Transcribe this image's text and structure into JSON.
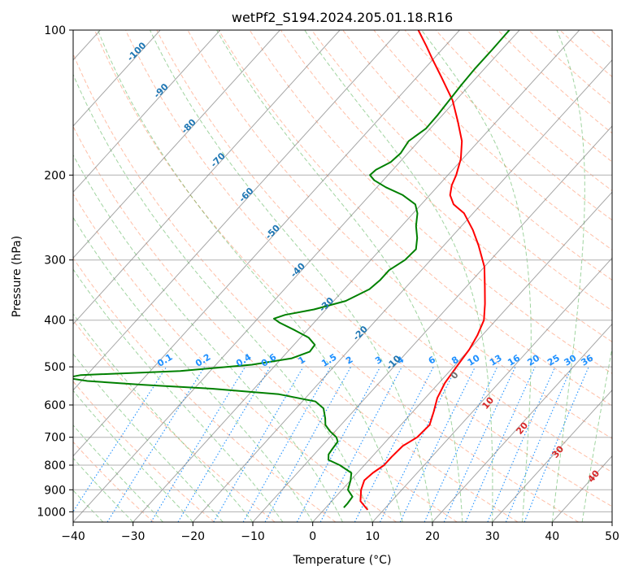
{
  "chart_data": {
    "type": "line",
    "subtype": "skew-T log-P diagram",
    "title": "wetPf2_S194.2024.205.01.18.R16",
    "xlabel": "Temperature (°C)",
    "ylabel": "Pressure (hPa)",
    "xlim": [
      -40,
      50
    ],
    "ylim": [
      1050,
      100
    ],
    "y_scale": "log",
    "x_ticks": [
      -40,
      -30,
      -20,
      -10,
      0,
      10,
      20,
      30,
      40,
      50
    ],
    "y_ticks": [
      1000,
      900,
      800,
      700,
      600,
      500,
      400,
      300,
      200,
      100
    ],
    "grid": true,
    "isotherm_labels": [
      -100,
      -90,
      -80,
      -70,
      -60,
      -50,
      -40,
      -30,
      -20,
      -10
    ],
    "mixing_ratio_labels": [
      "0.1",
      "0.2",
      "0.4",
      "0.6",
      "1",
      "1.5",
      "2",
      "3",
      "4",
      "6",
      "8",
      "10",
      "13",
      "16",
      "20",
      "25",
      "30",
      "36"
    ],
    "moist_adiabat_labels": [
      "0",
      "10",
      "20",
      "30",
      "40"
    ],
    "colors": {
      "temperature": "#ff0000",
      "dewpoint": "#008000",
      "dry_adiabat": "#ff7f50",
      "moist_adiabat": "#2ca02c",
      "mixing_ratio": "#1e90ff",
      "isotherm": "#808080",
      "isotherm_label": "#1f77b4",
      "moist_label": "#d62728",
      "frame": "#000000"
    },
    "series": [
      {
        "name": "Temperature",
        "points": [
          {
            "p": 990,
            "t": 7.3
          },
          {
            "p": 950,
            "t": 4.8
          },
          {
            "p": 900,
            "t": 3.2
          },
          {
            "p": 860,
            "t": 2.3
          },
          {
            "p": 830,
            "t": 2.6
          },
          {
            "p": 800,
            "t": 3.3
          },
          {
            "p": 770,
            "t": 3.3
          },
          {
            "p": 730,
            "t": 3.5
          },
          {
            "p": 700,
            "t": 4.6
          },
          {
            "p": 660,
            "t": 4.8
          },
          {
            "p": 620,
            "t": 3.5
          },
          {
            "p": 580,
            "t": 2.0
          },
          {
            "p": 540,
            "t": 1.0
          },
          {
            "p": 500,
            "t": 0.5
          },
          {
            "p": 460,
            "t": 0.0
          },
          {
            "p": 430,
            "t": -0.8
          },
          {
            "p": 400,
            "t": -2.0
          },
          {
            "p": 370,
            "t": -4.3
          },
          {
            "p": 340,
            "t": -7.0
          },
          {
            "p": 310,
            "t": -10.0
          },
          {
            "p": 280,
            "t": -14.2
          },
          {
            "p": 260,
            "t": -17.5
          },
          {
            "p": 240,
            "t": -21.5
          },
          {
            "p": 230,
            "t": -24.6
          },
          {
            "p": 220,
            "t": -26.6
          },
          {
            "p": 210,
            "t": -27.8
          },
          {
            "p": 200,
            "t": -28.6
          },
          {
            "p": 185,
            "t": -30.3
          },
          {
            "p": 170,
            "t": -32.8
          },
          {
            "p": 155,
            "t": -36.4
          },
          {
            "p": 140,
            "t": -40.5
          },
          {
            "p": 125,
            "t": -46.0
          },
          {
            "p": 115,
            "t": -50.1
          },
          {
            "p": 108,
            "t": -53.1
          },
          {
            "p": 100,
            "t": -56.9
          }
        ]
      },
      {
        "name": "Dewpoint",
        "points": [
          {
            "p": 980,
            "t": 3.0
          },
          {
            "p": 960,
            "t": 3.0
          },
          {
            "p": 930,
            "t": 2.8
          },
          {
            "p": 900,
            "t": 1.0
          },
          {
            "p": 860,
            "t": 0.0
          },
          {
            "p": 830,
            "t": -1.0
          },
          {
            "p": 800,
            "t": -4.1
          },
          {
            "p": 780,
            "t": -6.8
          },
          {
            "p": 760,
            "t": -7.6
          },
          {
            "p": 740,
            "t": -7.8
          },
          {
            "p": 715,
            "t": -8.0
          },
          {
            "p": 700,
            "t": -8.9
          },
          {
            "p": 680,
            "t": -10.9
          },
          {
            "p": 660,
            "t": -12.6
          },
          {
            "p": 640,
            "t": -13.6
          },
          {
            "p": 610,
            "t": -15.4
          },
          {
            "p": 590,
            "t": -17.8
          },
          {
            "p": 570,
            "t": -25.0
          },
          {
            "p": 555,
            "t": -37.0
          },
          {
            "p": 545,
            "t": -49.0
          },
          {
            "p": 535,
            "t": -59.0
          },
          {
            "p": 527,
            "t": -63.0
          },
          {
            "p": 520,
            "t": -61.0
          },
          {
            "p": 510,
            "t": -45.0
          },
          {
            "p": 495,
            "t": -34.0
          },
          {
            "p": 480,
            "t": -28.3
          },
          {
            "p": 465,
            "t": -26.3
          },
          {
            "p": 450,
            "t": -26.5
          },
          {
            "p": 435,
            "t": -28.6
          },
          {
            "p": 420,
            "t": -32.0
          },
          {
            "p": 405,
            "t": -35.7
          },
          {
            "p": 397,
            "t": -37.3
          },
          {
            "p": 390,
            "t": -36.0
          },
          {
            "p": 380,
            "t": -32.0
          },
          {
            "p": 365,
            "t": -28.0
          },
          {
            "p": 345,
            "t": -25.8
          },
          {
            "p": 330,
            "t": -25.4
          },
          {
            "p": 315,
            "t": -25.4
          },
          {
            "p": 300,
            "t": -24.3
          },
          {
            "p": 285,
            "t": -24.1
          },
          {
            "p": 270,
            "t": -25.6
          },
          {
            "p": 255,
            "t": -27.6
          },
          {
            "p": 240,
            "t": -29.3
          },
          {
            "p": 230,
            "t": -31.0
          },
          {
            "p": 220,
            "t": -34.5
          },
          {
            "p": 212,
            "t": -38.5
          },
          {
            "p": 205,
            "t": -41.5
          },
          {
            "p": 200,
            "t": -43.0
          },
          {
            "p": 195,
            "t": -42.8
          },
          {
            "p": 188,
            "t": -41.5
          },
          {
            "p": 180,
            "t": -41.2
          },
          {
            "p": 170,
            "t": -41.7
          },
          {
            "p": 160,
            "t": -40.7
          },
          {
            "p": 150,
            "t": -40.8
          },
          {
            "p": 140,
            "t": -41.1
          },
          {
            "p": 130,
            "t": -41.4
          },
          {
            "p": 120,
            "t": -41.6
          },
          {
            "p": 110,
            "t": -41.6
          },
          {
            "p": 100,
            "t": -41.7
          }
        ]
      }
    ]
  }
}
